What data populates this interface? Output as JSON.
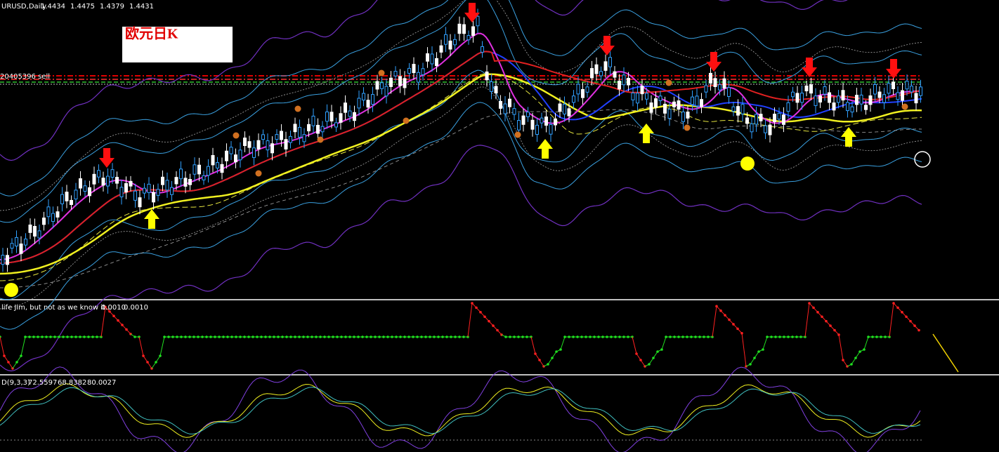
{
  "main_panel": {
    "symbol": "URUSD,Daily",
    "ohlc": [
      "1.4434",
      "1.4475",
      "1.4379",
      "1.4431"
    ],
    "label_box": "欧元日K",
    "order_line": "20405396 sell"
  },
  "indicator_panel": {
    "name": "life Jim, but not as we know it...",
    "values": [
      "0.0010",
      "0.0010"
    ]
  },
  "oscillator_panel": {
    "name": "D(9,3,3)",
    "values": [
      "72.5597",
      "68.8382",
      "80.0027"
    ]
  }
}
